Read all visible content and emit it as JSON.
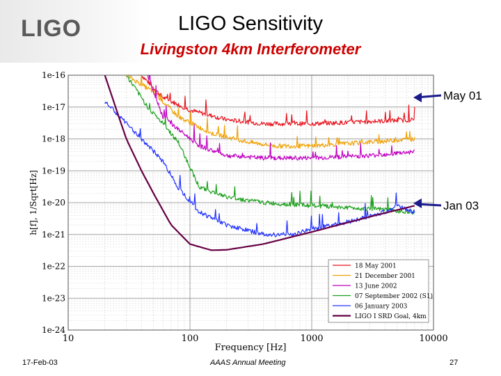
{
  "slide": {
    "logo_text": "LIGO",
    "title": "LIGO Sensitivity",
    "subtitle": "Livingston 4km Interferometer",
    "footer_date": "17-Feb-03",
    "footer_meeting": "AAAS Annual Meeting",
    "footer_page": "27",
    "callout_top": "May 01",
    "callout_bottom": "Jan 03"
  },
  "chart_data": {
    "type": "line",
    "title": "",
    "xlabel": "Frequency [Hz]",
    "ylabel": "h[f], 1/Sqrt[Hz]",
    "xscale": "log",
    "yscale": "log",
    "xlim": [
      10,
      10000
    ],
    "ylim": [
      1e-24,
      1e-16
    ],
    "xticks": [
      10,
      100,
      1000,
      10000
    ],
    "xtick_labels": [
      "10",
      "100",
      "1000",
      "10000"
    ],
    "yticks": [
      1e-16,
      1e-17,
      1e-18,
      1e-19,
      1e-20,
      1e-21,
      1e-22,
      1e-23,
      1e-24
    ],
    "ytick_labels": [
      "1e-16",
      "1e-17",
      "1e-18",
      "1e-19",
      "1e-20",
      "1e-21",
      "1e-22",
      "1e-23",
      "1e-24"
    ],
    "grid": true,
    "legend_position": "bottom-right",
    "series": [
      {
        "name": "18 May 2001",
        "color": "#e8141e",
        "points": [
          [
            40,
            1e-16
          ],
          [
            60,
            2e-17
          ],
          [
            100,
            8e-18
          ],
          [
            200,
            4e-18
          ],
          [
            400,
            3e-18
          ],
          [
            1000,
            3e-18
          ],
          [
            3000,
            3.5e-18
          ],
          [
            7000,
            4e-18
          ]
        ]
      },
      {
        "name": "21 December 2001",
        "color": "#f0a000",
        "points": [
          [
            30,
            1e-16
          ],
          [
            50,
            3e-17
          ],
          [
            80,
            5e-18
          ],
          [
            150,
            1.5e-18
          ],
          [
            300,
            8e-19
          ],
          [
            500,
            6e-19
          ],
          [
            1000,
            6e-19
          ],
          [
            3000,
            8e-19
          ],
          [
            7000,
            1e-18
          ]
        ]
      },
      {
        "name": "13 June 2002",
        "color": "#c000c0",
        "points": [
          [
            45,
            1e-16
          ],
          [
            60,
            5e-18
          ],
          [
            80,
            2e-18
          ],
          [
            120,
            6e-19
          ],
          [
            200,
            3e-19
          ],
          [
            400,
            2.5e-19
          ],
          [
            1000,
            2.5e-19
          ],
          [
            3000,
            3e-19
          ],
          [
            7000,
            4e-19
          ]
        ]
      },
      {
        "name": "07 September 2002 (S1)",
        "color": "#1aa01a",
        "points": [
          [
            30,
            1e-16
          ],
          [
            45,
            1e-17
          ],
          [
            60,
            3e-18
          ],
          [
            80,
            8e-19
          ],
          [
            120,
            3e-20
          ],
          [
            200,
            1.5e-20
          ],
          [
            400,
            1e-20
          ],
          [
            1000,
            8e-21
          ],
          [
            2000,
            7e-21
          ],
          [
            4000,
            6e-21
          ],
          [
            7000,
            5e-21
          ]
        ]
      },
      {
        "name": "06 January 2003",
        "color": "#2030ff",
        "points": [
          [
            20,
            1.5e-17
          ],
          [
            40,
            1e-18
          ],
          [
            60,
            2e-19
          ],
          [
            80,
            3e-20
          ],
          [
            120,
            5e-21
          ],
          [
            200,
            2e-21
          ],
          [
            400,
            1e-21
          ],
          [
            700,
            1e-21
          ],
          [
            1000,
            1.5e-21
          ],
          [
            2000,
            2.5e-21
          ],
          [
            4000,
            5e-21
          ],
          [
            5000,
            8e-21
          ],
          [
            7000,
            5e-21
          ]
        ]
      },
      {
        "name": "LIGO I SRD Goal, 4km",
        "color": "#660044",
        "points": [
          [
            20,
            1e-16
          ],
          [
            30,
            1e-18
          ],
          [
            40,
            1e-19
          ],
          [
            50,
            2e-20
          ],
          [
            70,
            2e-21
          ],
          [
            100,
            5e-22
          ],
          [
            150,
            3.2e-22
          ],
          [
            200,
            3.3e-22
          ],
          [
            400,
            5e-22
          ],
          [
            1000,
            1.2e-21
          ],
          [
            3000,
            3.6e-21
          ],
          [
            7000,
            8e-21
          ]
        ]
      }
    ]
  }
}
